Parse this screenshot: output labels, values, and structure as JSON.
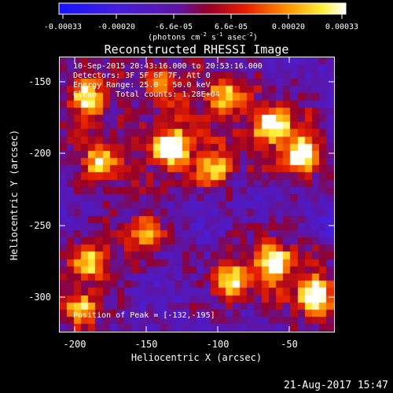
{
  "colorbar": {
    "ticks": [
      "-0.00033",
      "-0.00020",
      "-6.6e-05",
      "6.6e-05",
      "0.00020",
      "0.00033"
    ],
    "unit_prefix": "(photons cm",
    "unit_exp1": "-2",
    "unit_mid": " s",
    "unit_exp2": "-1",
    "unit_mid2": " asec",
    "unit_exp3": "-2",
    "unit_suffix": ")"
  },
  "title": "Reconstructed RHESSI Image",
  "info": {
    "line1": "10-Sep-2015 20:43:16.000 to 20:53:16.000",
    "line2": "Detectors: 3F 5F 6F 7F, Att 0",
    "line3": "Energy Range: 25.0 - 50.0 keV",
    "line4": "Clean    Total counts: 1.28E+04",
    "peak": "Position of Peak = [-132,-195]"
  },
  "axes": {
    "xlabel": "Heliocentric X (arcsec)",
    "ylabel": "Heliocentric Y (arcsec)",
    "xticks": [
      "-200",
      "-150",
      "-100",
      "-50"
    ],
    "yticks": [
      "-150",
      "-200",
      "-250",
      "-300"
    ]
  },
  "timestamp": "21-Aug-2017 15:47",
  "chart_data": {
    "type": "heatmap",
    "title": "Reconstructed RHESSI Image",
    "xlabel": "Heliocentric X (arcsec)",
    "ylabel": "Heliocentric Y (arcsec)",
    "xlim": [
      -210,
      -18
    ],
    "ylim": [
      -324,
      -132
    ],
    "colorbar_range": [
      -0.00033,
      0.00033
    ],
    "colormap": "blue-purple-red-yellow-white",
    "peak_position": [
      -132,
      -195
    ],
    "sources": [
      {
        "x": -132,
        "y": -195,
        "intensity": 1.0
      },
      {
        "x": -190,
        "y": -160,
        "intensity": 0.8
      },
      {
        "x": -180,
        "y": -205,
        "intensity": 0.75
      },
      {
        "x": -95,
        "y": -160,
        "intensity": 0.7
      },
      {
        "x": -60,
        "y": -180,
        "intensity": 0.8
      },
      {
        "x": -40,
        "y": -200,
        "intensity": 0.85
      },
      {
        "x": -100,
        "y": -210,
        "intensity": 0.6
      },
      {
        "x": -60,
        "y": -275,
        "intensity": 0.85
      },
      {
        "x": -90,
        "y": -290,
        "intensity": 0.7
      },
      {
        "x": -30,
        "y": -300,
        "intensity": 0.95
      },
      {
        "x": -150,
        "y": -255,
        "intensity": 0.6
      },
      {
        "x": -190,
        "y": -275,
        "intensity": 0.65
      },
      {
        "x": -195,
        "y": -310,
        "intensity": 0.6
      },
      {
        "x": -140,
        "y": -150,
        "intensity": 0.55
      }
    ]
  }
}
